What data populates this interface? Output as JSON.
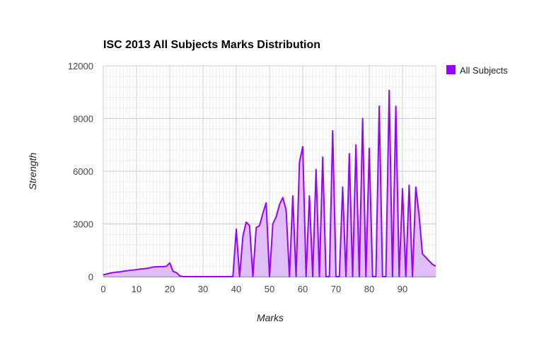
{
  "chart_data": {
    "type": "area",
    "title": "ISC 2013 All Subjects Marks Distribution",
    "xlabel": "Marks",
    "ylabel": "Strength",
    "xlim": [
      0,
      100
    ],
    "ylim": [
      0,
      12000
    ],
    "x_ticks": [
      "0",
      "10",
      "20",
      "30",
      "40",
      "50",
      "60",
      "70",
      "80",
      "90"
    ],
    "y_ticks": [
      "0",
      "3000",
      "6000",
      "9000",
      "12000"
    ],
    "grid": true,
    "legend_position": "right",
    "colors": {
      "series": "#9900ff",
      "fill": "#dcb8f5",
      "grid_major": "#cccccc",
      "grid_minor": "#eeeeee"
    },
    "series": [
      {
        "name": "All Subjects",
        "x": [
          0,
          1,
          2,
          3,
          4,
          5,
          6,
          7,
          8,
          9,
          10,
          11,
          12,
          13,
          14,
          15,
          16,
          17,
          18,
          19,
          20,
          21,
          22,
          23,
          24,
          25,
          26,
          27,
          28,
          29,
          30,
          31,
          32,
          33,
          34,
          35,
          36,
          37,
          38,
          39,
          40,
          41,
          42,
          43,
          44,
          45,
          46,
          47,
          48,
          49,
          50,
          51,
          52,
          53,
          54,
          55,
          56,
          57,
          58,
          59,
          60,
          61,
          62,
          63,
          64,
          65,
          66,
          67,
          68,
          69,
          70,
          71,
          72,
          73,
          74,
          75,
          76,
          77,
          78,
          79,
          80,
          81,
          82,
          83,
          84,
          85,
          86,
          87,
          88,
          89,
          90,
          91,
          92,
          93,
          94,
          95,
          96,
          97,
          98,
          99,
          100
        ],
        "values": [
          100,
          150,
          200,
          230,
          260,
          270,
          310,
          330,
          360,
          380,
          400,
          430,
          450,
          470,
          500,
          550,
          560,
          570,
          570,
          590,
          780,
          300,
          230,
          50,
          0,
          0,
          0,
          0,
          0,
          0,
          0,
          0,
          0,
          0,
          0,
          0,
          0,
          0,
          0,
          0,
          2700,
          0,
          2300,
          3100,
          2900,
          0,
          2800,
          2900,
          3600,
          4200,
          0,
          3000,
          3400,
          4100,
          4500,
          3800,
          0,
          4600,
          0,
          6500,
          7400,
          0,
          4600,
          0,
          6100,
          0,
          6800,
          0,
          0,
          8300,
          0,
          0,
          5100,
          0,
          7000,
          0,
          7500,
          0,
          9000,
          0,
          7300,
          0,
          0,
          9700,
          0,
          0,
          10600,
          0,
          9700,
          0,
          5000,
          0,
          5200,
          0,
          5100,
          3500,
          1300,
          1100,
          900,
          700,
          600
        ]
      }
    ]
  }
}
